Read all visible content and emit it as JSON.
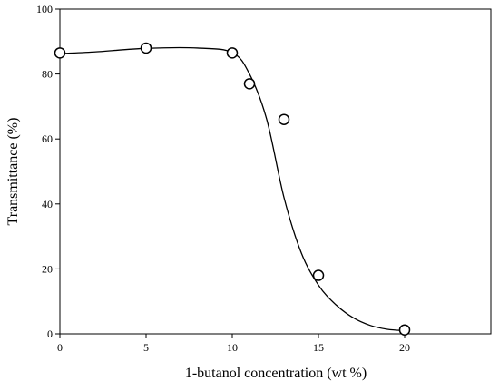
{
  "chart_data": {
    "type": "scatter",
    "title": "",
    "xlabel": "1-butanol concentration (wt %)",
    "ylabel": "Transmittance (%)",
    "xlim": [
      0,
      25
    ],
    "ylim": [
      0,
      100
    ],
    "xticks": [
      0,
      5,
      10,
      15,
      20
    ],
    "yticks": [
      0,
      20,
      40,
      60,
      80,
      100
    ],
    "grid": false,
    "series": [
      {
        "marker": "open-circle",
        "points": [
          {
            "x": 0,
            "y": 86.5
          },
          {
            "x": 5,
            "y": 88
          },
          {
            "x": 10,
            "y": 86.5
          },
          {
            "x": 11,
            "y": 77
          },
          {
            "x": 13,
            "y": 66
          },
          {
            "x": 15,
            "y": 18
          },
          {
            "x": 20,
            "y": 1.2
          }
        ]
      }
    ],
    "fit_curve": {
      "points": [
        {
          "x": 0,
          "y": 86.3
        },
        {
          "x": 2,
          "y": 86.8
        },
        {
          "x": 5,
          "y": 87.9
        },
        {
          "x": 8,
          "y": 88.0
        },
        {
          "x": 10,
          "y": 86.6
        },
        {
          "x": 11,
          "y": 80
        },
        {
          "x": 12,
          "y": 66
        },
        {
          "x": 13,
          "y": 42
        },
        {
          "x": 14,
          "y": 25
        },
        {
          "x": 15,
          "y": 15
        },
        {
          "x": 16,
          "y": 9
        },
        {
          "x": 17,
          "y": 5
        },
        {
          "x": 18,
          "y": 2.6
        },
        {
          "x": 19,
          "y": 1.4
        },
        {
          "x": 20,
          "y": 1.0
        }
      ]
    },
    "colors": {
      "line": "#000000",
      "marker_fill": "#ffffff",
      "background": "#ffffff"
    }
  }
}
